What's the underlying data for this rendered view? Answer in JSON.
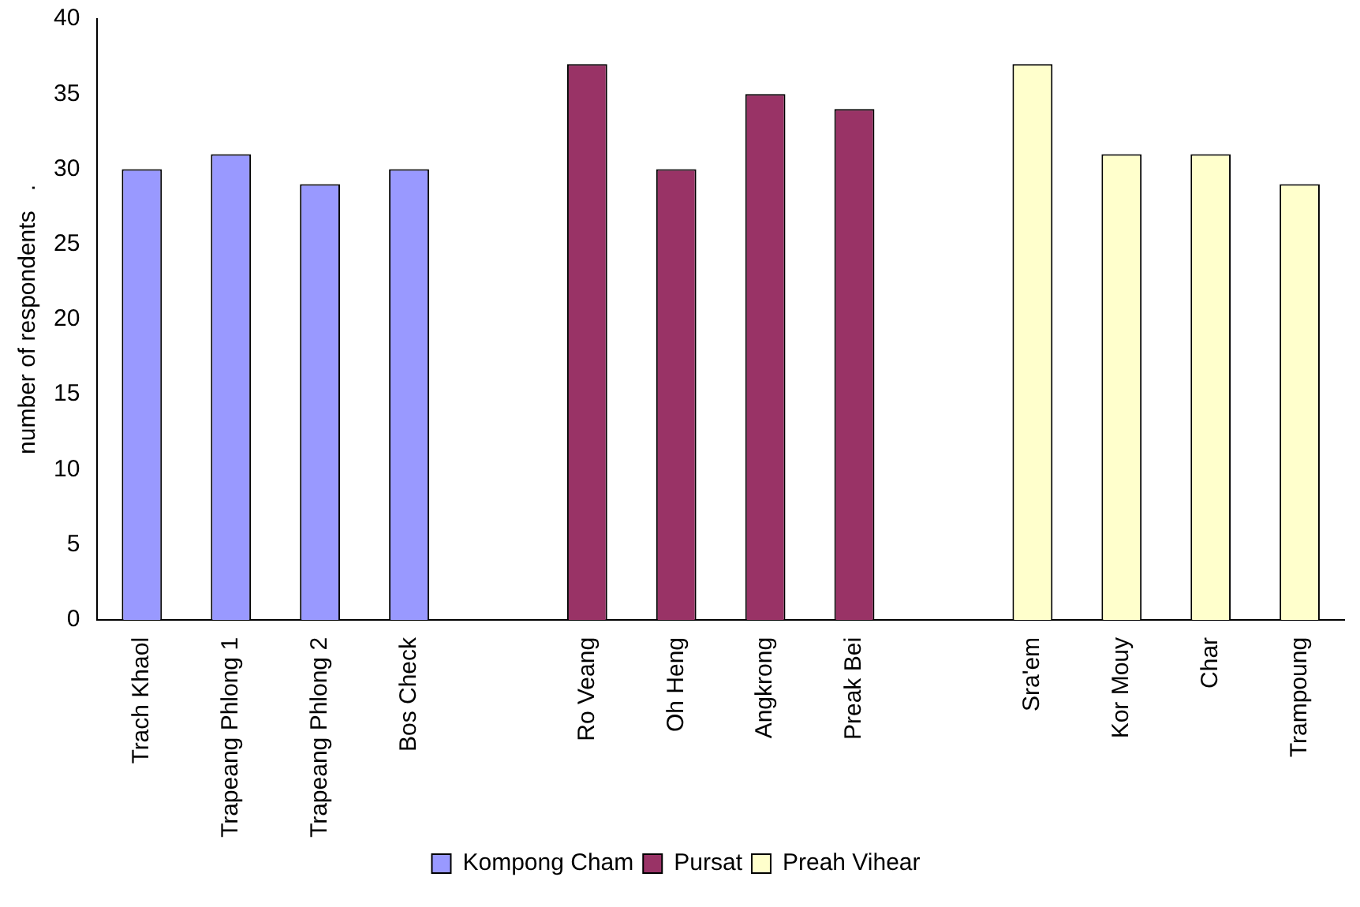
{
  "chart_data": {
    "type": "bar",
    "ylabel": "number of respondents   .",
    "categories": [
      "Trach Khaol",
      "Trapeang Phlong 1",
      "Trapeang Phlong 2",
      "Bos Check",
      null,
      "Ro Veang",
      "Oh Heng",
      "Angkrong",
      "Preak Bei",
      null,
      "Sra'em",
      "Kor Mouy",
      "Char",
      "Trampoung"
    ],
    "series": [
      {
        "name": "Kompong Cham",
        "color": "#9999ff",
        "values": [
          30,
          31,
          29,
          30,
          null,
          null,
          null,
          null,
          null,
          null,
          null,
          null,
          null,
          null
        ]
      },
      {
        "name": "Pursat",
        "color": "#993366",
        "values": [
          null,
          null,
          null,
          null,
          null,
          37,
          30,
          35,
          34,
          null,
          null,
          null,
          null,
          null
        ]
      },
      {
        "name": "Preah Vihear",
        "color": "#ffffcc",
        "values": [
          null,
          null,
          null,
          null,
          null,
          null,
          null,
          null,
          null,
          null,
          37,
          31,
          31,
          29
        ]
      }
    ],
    "ylim": [
      0,
      40
    ],
    "yticks": [
      0,
      5,
      10,
      15,
      20,
      25,
      30,
      35,
      40
    ],
    "grid": false,
    "legend": "bottom"
  }
}
